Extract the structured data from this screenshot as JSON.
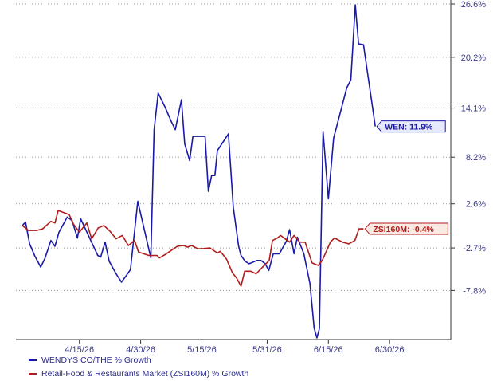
{
  "chart_data": {
    "type": "line",
    "title": "",
    "xlabel": "",
    "ylabel": "",
    "x_ticks": [
      "4/15/26",
      "4/30/26",
      "5/15/26",
      "5/31/26",
      "6/15/26",
      "6/30/26"
    ],
    "x_tick_days": [
      14,
      29,
      44,
      60,
      75,
      90
    ],
    "x_range_days": [
      0,
      105
    ],
    "y_ticks": [
      26.6,
      20.2,
      14.1,
      8.2,
      2.6,
      -2.7,
      -7.8
    ],
    "y_tick_labels": [
      "26.6%",
      "20.2%",
      "14.1%",
      "8.2%",
      "2.6%",
      "-2.7%",
      "-7.8%"
    ],
    "ylim": [
      -13.7,
      26.6
    ],
    "grid": "horizontal-dotted",
    "series": [
      {
        "name": "WENDYS CO/THE % Growth",
        "color": "#1a1aa8",
        "end_label": "WEN: 11.9%",
        "points": [
          [
            0,
            0.0
          ],
          [
            0.8,
            0.4
          ],
          [
            1.8,
            -2.2
          ],
          [
            3,
            -3.6
          ],
          [
            4.5,
            -5.0
          ],
          [
            5.5,
            -4.0
          ],
          [
            7,
            -1.8
          ],
          [
            8,
            -2.5
          ],
          [
            9,
            -0.8
          ],
          [
            11,
            1.0
          ],
          [
            12.2,
            0.6
          ],
          [
            13.5,
            -1.5
          ],
          [
            14.3,
            0.8
          ],
          [
            16.5,
            -1.5
          ],
          [
            18.5,
            -3.6
          ],
          [
            19.2,
            -3.8
          ],
          [
            20.3,
            -2.0
          ],
          [
            21.3,
            -4.3
          ],
          [
            23,
            -5.8
          ],
          [
            24.3,
            -6.8
          ],
          [
            25.5,
            -6.0
          ],
          [
            26.5,
            -5.3
          ],
          [
            28.3,
            2.9
          ],
          [
            31.5,
            -3.9
          ],
          [
            32.3,
            11.5
          ],
          [
            33.3,
            15.9
          ],
          [
            35,
            14.2
          ],
          [
            36.5,
            12.5
          ],
          [
            37.5,
            11.5
          ],
          [
            39,
            15.1
          ],
          [
            39.8,
            9.8
          ],
          [
            41,
            7.8
          ],
          [
            41.8,
            10.7
          ],
          [
            44,
            10.7
          ],
          [
            44.8,
            10.7
          ],
          [
            45.6,
            4.1
          ],
          [
            46.4,
            6.0
          ],
          [
            47.2,
            6.0
          ],
          [
            47.8,
            9.0
          ],
          [
            50.5,
            11.0
          ],
          [
            51.7,
            2.2
          ],
          [
            53,
            -2.5
          ],
          [
            53.6,
            -3.6
          ],
          [
            54.6,
            -4.3
          ],
          [
            55.6,
            -4.6
          ],
          [
            57.5,
            -4.2
          ],
          [
            58.5,
            -4.2
          ],
          [
            59.5,
            -4.6
          ],
          [
            60.4,
            -5.4
          ],
          [
            61.5,
            -3.4
          ],
          [
            63,
            -3.4
          ],
          [
            64.7,
            -1.9
          ],
          [
            65.5,
            -0.5
          ],
          [
            66.6,
            -3.4
          ],
          [
            67.4,
            -1.4
          ],
          [
            69,
            -3.4
          ],
          [
            70.5,
            -7.0
          ],
          [
            71.5,
            -12.3
          ],
          [
            72.2,
            -13.5
          ],
          [
            72.8,
            -12.4
          ],
          [
            73.7,
            11.3
          ],
          [
            75,
            3.2
          ],
          [
            76.3,
            10.5
          ],
          [
            79.5,
            16.5
          ],
          [
            80.5,
            17.5
          ],
          [
            81.6,
            26.5
          ],
          [
            82.4,
            21.8
          ],
          [
            83.6,
            21.7
          ],
          [
            86.5,
            11.9
          ]
        ]
      },
      {
        "name": "Retail-Food & Restaurants Market (ZSI160M) % Growth",
        "color": "#b01c1c",
        "end_label": "ZSI160M: -0.4%",
        "points": [
          [
            0,
            0.0
          ],
          [
            1.5,
            -0.6
          ],
          [
            3.5,
            -0.6
          ],
          [
            5,
            -0.4
          ],
          [
            7,
            0.5
          ],
          [
            8,
            0.3
          ],
          [
            8.8,
            1.8
          ],
          [
            11.5,
            1.3
          ],
          [
            12.5,
            0.2
          ],
          [
            14,
            -0.8
          ],
          [
            15.8,
            0.3
          ],
          [
            17,
            -1.6
          ],
          [
            18.6,
            -0.3
          ],
          [
            20,
            0.0
          ],
          [
            21.5,
            -0.7
          ],
          [
            23,
            -1.6
          ],
          [
            24.5,
            -1.2
          ],
          [
            26,
            -2.4
          ],
          [
            27.5,
            -1.8
          ],
          [
            28.5,
            -3.2
          ],
          [
            31,
            -3.6
          ],
          [
            33,
            -3.6
          ],
          [
            33.6,
            -3.9
          ],
          [
            35,
            -3.5
          ],
          [
            36.5,
            -3.0
          ],
          [
            38,
            -2.5
          ],
          [
            39.5,
            -2.4
          ],
          [
            40.5,
            -2.6
          ],
          [
            41.5,
            -2.4
          ],
          [
            43,
            -2.8
          ],
          [
            44,
            -2.8
          ],
          [
            46,
            -2.7
          ],
          [
            47.8,
            -3.3
          ],
          [
            48.5,
            -3.1
          ],
          [
            50,
            -4.0
          ],
          [
            51.5,
            -5.7
          ],
          [
            52.5,
            -6.3
          ],
          [
            53.6,
            -7.3
          ],
          [
            54.5,
            -5.5
          ],
          [
            56,
            -5.5
          ],
          [
            57.3,
            -5.8
          ],
          [
            58.5,
            -5.2
          ],
          [
            60.5,
            -4.2
          ],
          [
            61.3,
            -1.8
          ],
          [
            62.5,
            -1.5
          ],
          [
            63.3,
            -1.2
          ],
          [
            65.5,
            -2.0
          ],
          [
            66.6,
            -1.2
          ],
          [
            68,
            -2.0
          ],
          [
            69.3,
            -2.0
          ],
          [
            71,
            -4.5
          ],
          [
            72.5,
            -4.8
          ],
          [
            73.5,
            -4.2
          ],
          [
            75.5,
            -2.0
          ],
          [
            76.5,
            -1.5
          ],
          [
            78.5,
            -2.0
          ],
          [
            80,
            -2.2
          ],
          [
            81.5,
            -1.8
          ],
          [
            82.5,
            -0.4
          ],
          [
            83.6,
            -0.4
          ]
        ]
      }
    ],
    "legend_position": "bottom-left"
  }
}
